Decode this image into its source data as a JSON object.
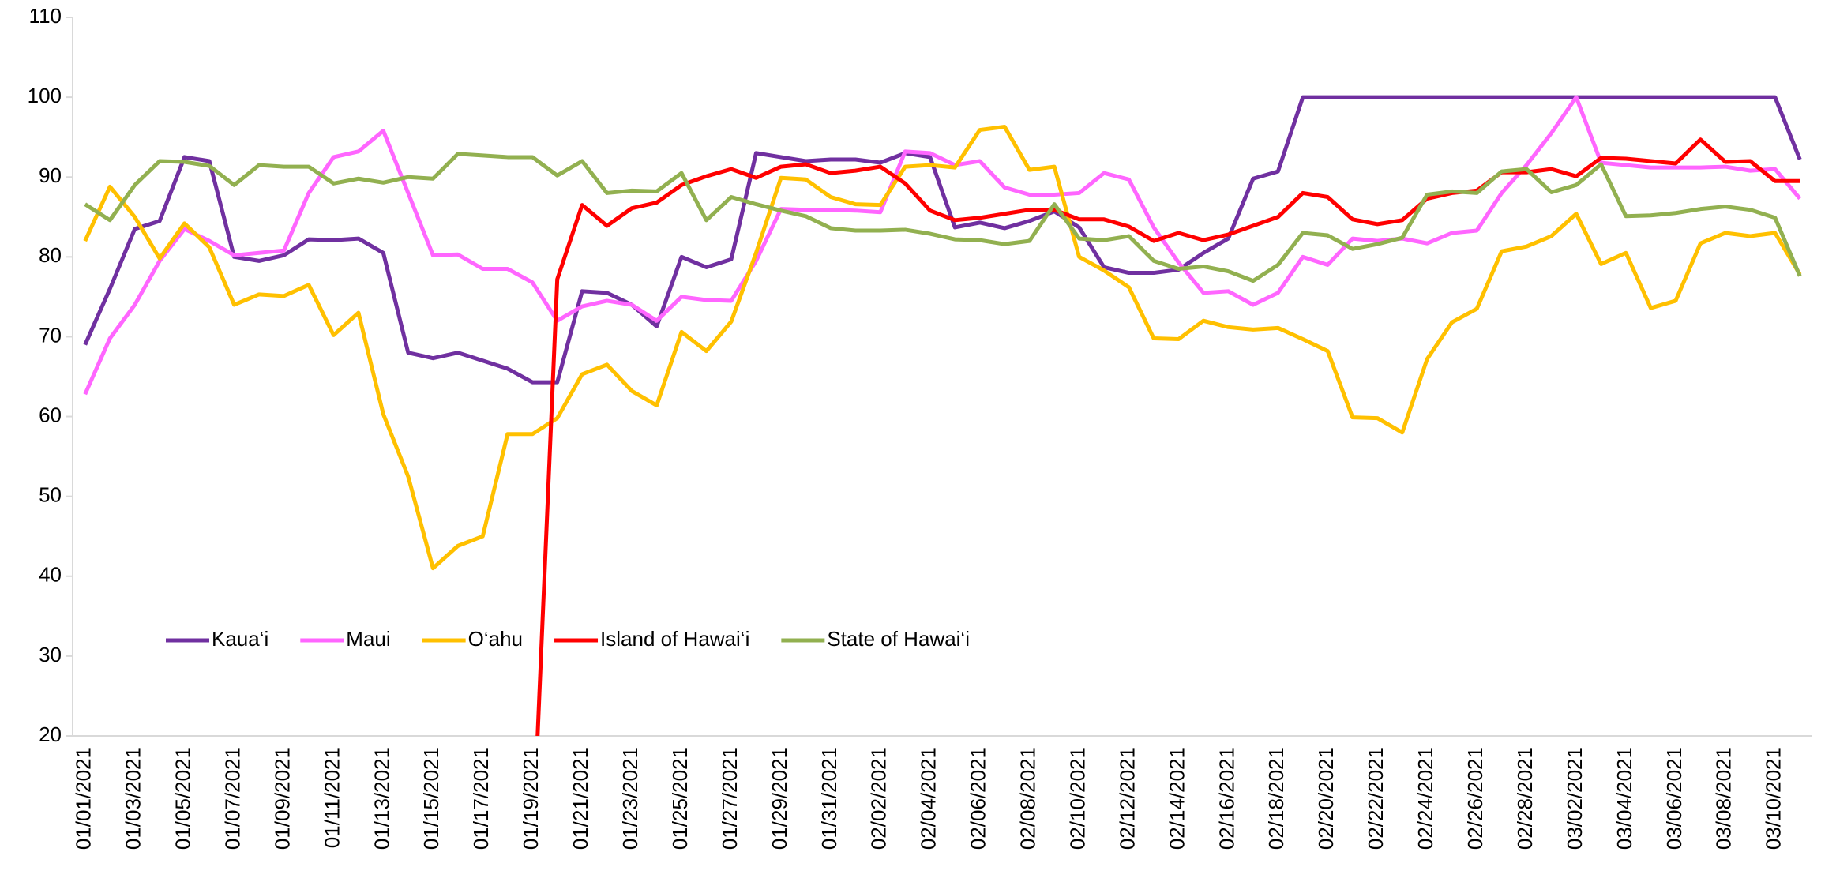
{
  "chart_data": {
    "type": "line",
    "categories": [
      "01/01/2021",
      null,
      "01/03/2021",
      null,
      "01/05/2021",
      null,
      "01/07/2021",
      null,
      "01/09/2021",
      null,
      "01/11/2021",
      null,
      "01/13/2021",
      null,
      "01/15/2021",
      null,
      "01/17/2021",
      null,
      "01/19/2021",
      null,
      "01/21/2021",
      null,
      "01/23/2021",
      null,
      "01/25/2021",
      null,
      "01/27/2021",
      null,
      "01/29/2021",
      null,
      "01/31/2021",
      null,
      "02/02/2021",
      null,
      "02/04/2021",
      null,
      "02/06/2021",
      null,
      "02/08/2021",
      null,
      "02/10/2021",
      null,
      "02/12/2021",
      null,
      "02/14/2021",
      null,
      "02/16/2021",
      null,
      "02/18/2021",
      null,
      "02/20/2021",
      null,
      "02/22/2021",
      null,
      "02/24/2021",
      null,
      "02/26/2021",
      null,
      "02/28/2021",
      null,
      "03/02/2021",
      null,
      "03/04/2021",
      null,
      "03/06/2021",
      null,
      "03/08/2021",
      null,
      "03/10/2021",
      null
    ],
    "series": [
      {
        "name": "Kaua‘i",
        "color": "#7030a0",
        "values": [
          69,
          76,
          83.5,
          84.5,
          92.5,
          92,
          80,
          79.5,
          80.2,
          82.2,
          82.1,
          82.3,
          80.5,
          68,
          67.3,
          68,
          67,
          66,
          64.3,
          64.3,
          75.7,
          75.5,
          74,
          71.3,
          80,
          78.7,
          79.7,
          93,
          92.5,
          92,
          92.2,
          92.2,
          91.8,
          93,
          92.5,
          83.7,
          84.3,
          83.6,
          84.5,
          85.7,
          83.7,
          78.7,
          78,
          78,
          78.4,
          80.5,
          82.3,
          89.8,
          90.7,
          100,
          100,
          100,
          100,
          100,
          100,
          100,
          100,
          100,
          100,
          100,
          100,
          100,
          100,
          100,
          100,
          100,
          100,
          100,
          100,
          92.2
        ]
      },
      {
        "name": "Maui",
        "color": "#ff66ff",
        "values": [
          62.8,
          69.8,
          74,
          79.5,
          83.5,
          82,
          80.2,
          80.5,
          80.8,
          88,
          92.5,
          93.2,
          95.8,
          88,
          80.2,
          80.3,
          78.5,
          78.5,
          76.8,
          72,
          73.8,
          74.5,
          74,
          72,
          75,
          74.6,
          74.5,
          79.5,
          86,
          85.9,
          85.9,
          85.8,
          85.6,
          93.2,
          93,
          91.5,
          92,
          88.7,
          87.8,
          87.8,
          88,
          90.5,
          89.7,
          83.7,
          79.3,
          75.5,
          75.7,
          74,
          75.5,
          80,
          79,
          82.3,
          82,
          82.3,
          81.7,
          83,
          83.3,
          88,
          91.5,
          95.5,
          100,
          91.8,
          91.5,
          91.2,
          91.2,
          91.2,
          91.3,
          90.8,
          91,
          87.3
        ]
      },
      {
        "name": "O‘ahu",
        "color": "#ffc000",
        "values": [
          82,
          88.8,
          85,
          79.8,
          84.2,
          81.2,
          74,
          75.3,
          75.1,
          76.5,
          70.2,
          73,
          60.3,
          52.5,
          41,
          43.8,
          45,
          57.8,
          57.8,
          59.8,
          65.3,
          66.5,
          63.2,
          61.4,
          70.6,
          68.2,
          71.9,
          80.5,
          89.9,
          89.7,
          87.5,
          86.6,
          86.5,
          91.3,
          91.5,
          91.2,
          95.9,
          96.3,
          90.9,
          91.3,
          80,
          78.3,
          76.2,
          69.8,
          69.7,
          72,
          71.2,
          70.9,
          71.1,
          69.7,
          68.2,
          59.9,
          59.8,
          58,
          67.2,
          71.8,
          73.5,
          80.7,
          81.3,
          82.6,
          85.4,
          79.1,
          80.5,
          73.6,
          74.5,
          81.7,
          83,
          82.6,
          83,
          77.8
        ]
      },
      {
        "name": "Island of Hawai‘i",
        "color": "#ff0000",
        "values": [
          null,
          null,
          null,
          null,
          null,
          null,
          null,
          null,
          null,
          null,
          null,
          null,
          null,
          null,
          null,
          null,
          null,
          null,
          5,
          77.2,
          86.5,
          83.9,
          86.1,
          86.8,
          89,
          90.1,
          91,
          89.9,
          91.3,
          91.6,
          90.5,
          90.8,
          91.3,
          89.2,
          85.8,
          84.6,
          84.9,
          85.4,
          85.9,
          85.9,
          84.7,
          84.7,
          83.8,
          82,
          83,
          82.1,
          82.8,
          83.9,
          85,
          88,
          87.5,
          84.7,
          84.1,
          84.6,
          87.3,
          88,
          88.3,
          90.6,
          90.6,
          91,
          90.1,
          92.4,
          92.3,
          92,
          91.7,
          94.7,
          91.9,
          92,
          89.5,
          89.5
        ]
      },
      {
        "name": "State of Hawai‘i",
        "color": "#92b050",
        "values": [
          86.6,
          84.6,
          89,
          92,
          91.9,
          91.4,
          89,
          91.5,
          91.3,
          91.3,
          89.2,
          89.8,
          89.3,
          90,
          89.8,
          92.9,
          92.7,
          92.5,
          92.5,
          90.2,
          92,
          88,
          88.3,
          88.2,
          90.5,
          84.6,
          87.5,
          86.6,
          85.8,
          85.1,
          83.6,
          83.3,
          83.3,
          83.4,
          82.9,
          82.2,
          82.1,
          81.6,
          82,
          86.6,
          82.3,
          82.1,
          82.6,
          79.5,
          78.5,
          78.8,
          78.2,
          77,
          79,
          83,
          82.7,
          81,
          81.6,
          82.4,
          87.8,
          88.2,
          88,
          90.7,
          91,
          88.1,
          89,
          91.6,
          85.1,
          85.2,
          85.5,
          86,
          86.3,
          85.9,
          84.9,
          77.6
        ]
      }
    ],
    "ylim": [
      20,
      110
    ],
    "yticks": [
      20,
      30,
      40,
      50,
      60,
      70,
      80,
      90,
      100,
      110
    ],
    "grid": false,
    "legend_position": "lower-left"
  }
}
